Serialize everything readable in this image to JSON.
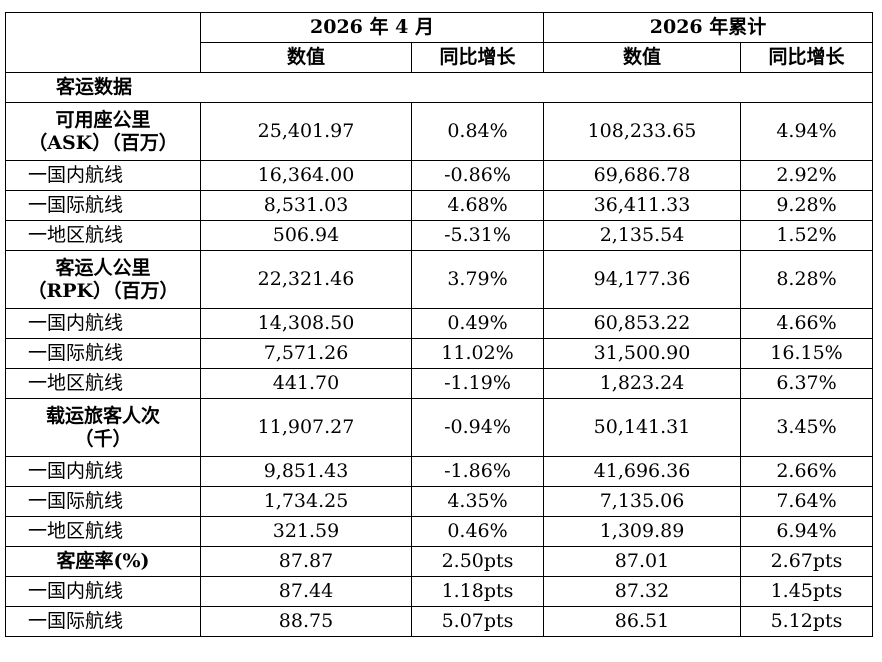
{
  "header": {
    "period1": "2026 年 4 月",
    "period2": "2026 年累计",
    "col_value": "数值",
    "col_yoy": "同比增长"
  },
  "section_title": "客运数据",
  "groups": [
    {
      "label_line1": "可用座公里",
      "label_line2": "（ASK）（百万）",
      "values": [
        "25,401.97",
        "0.84%",
        "108,233.65",
        "4.94%"
      ],
      "rows": [
        {
          "label": "一国内航线",
          "values": [
            "16,364.00",
            "-0.86%",
            "69,686.78",
            "2.92%"
          ]
        },
        {
          "label": "一国际航线",
          "values": [
            "8,531.03",
            "4.68%",
            "36,411.33",
            "9.28%"
          ]
        },
        {
          "label": "一地区航线",
          "values": [
            "506.94",
            "-5.31%",
            "2,135.54",
            "1.52%"
          ]
        }
      ]
    },
    {
      "label_line1": "客运人公里",
      "label_line2": "（RPK）（百万）",
      "values": [
        "22,321.46",
        "3.79%",
        "94,177.36",
        "8.28%"
      ],
      "rows": [
        {
          "label": "一国内航线",
          "values": [
            "14,308.50",
            "0.49%",
            "60,853.22",
            "4.66%"
          ]
        },
        {
          "label": "一国际航线",
          "values": [
            "7,571.26",
            "11.02%",
            "31,500.90",
            "16.15%"
          ]
        },
        {
          "label": "一地区航线",
          "values": [
            "441.70",
            "-1.19%",
            "1,823.24",
            "6.37%"
          ]
        }
      ]
    },
    {
      "label_line1": "载运旅客人次",
      "label_line2": "（千）",
      "values": [
        "11,907.27",
        "-0.94%",
        "50,141.31",
        "3.45%"
      ],
      "rows": [
        {
          "label": "一国内航线",
          "values": [
            "9,851.43",
            "-1.86%",
            "41,696.36",
            "2.66%"
          ]
        },
        {
          "label": "一国际航线",
          "values": [
            "1,734.25",
            "4.35%",
            "7,135.06",
            "7.64%"
          ]
        },
        {
          "label": "一地区航线",
          "values": [
            "321.59",
            "0.46%",
            "1,309.89",
            "6.94%"
          ]
        }
      ]
    },
    {
      "label_line1": "客座率(%)",
      "label_line2": "",
      "values": [
        "87.87",
        "2.50pts",
        "87.01",
        "2.67pts"
      ],
      "rows": [
        {
          "label": "一国内航线",
          "values": [
            "87.44",
            "1.18pts",
            "87.32",
            "1.45pts"
          ]
        },
        {
          "label": "一国际航线",
          "values": [
            "88.75",
            "5.07pts",
            "86.51",
            "5.12pts"
          ]
        }
      ]
    }
  ]
}
